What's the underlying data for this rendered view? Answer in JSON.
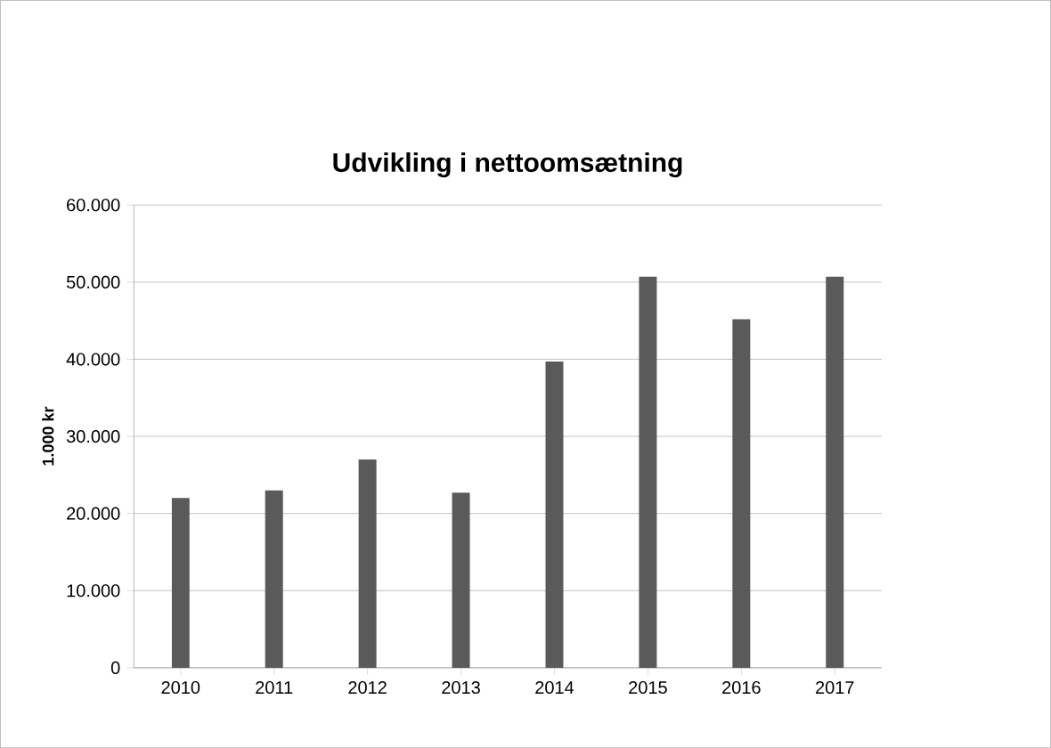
{
  "chart_data": {
    "type": "bar",
    "title": "Udvikling i nettoomsætning",
    "ylabel": "1.000 kr",
    "categories": [
      "2010",
      "2011",
      "2012",
      "2013",
      "2014",
      "2015",
      "2016",
      "2017"
    ],
    "values": [
      22000,
      23000,
      27000,
      22700,
      39700,
      50700,
      45200,
      50700
    ],
    "color": "#5a5a5a",
    "ylim": [
      0,
      60000
    ],
    "yticks": [
      0,
      {
        "value": 10000,
        "label": "10.000"
      },
      {
        "value": 20000,
        "label": "20.000"
      },
      {
        "value": 30000,
        "label": "30.000"
      },
      {
        "value": 40000,
        "label": "40.000"
      },
      {
        "value": 50000,
        "label": "50.000"
      },
      {
        "value": 60000,
        "label": "60.000"
      }
    ],
    "grid": "y"
  }
}
